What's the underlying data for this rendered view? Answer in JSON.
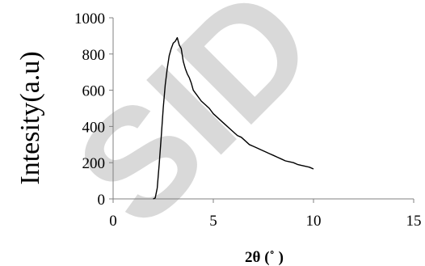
{
  "watermark": {
    "text": "SID",
    "color": "#d9d9d9"
  },
  "chart_data": {
    "type": "line",
    "xlabel": "2θ (˚ )",
    "ylabel": "Intesity(a.u)",
    "xlim": [
      0,
      15
    ],
    "ylim": [
      0,
      1000
    ],
    "xticks": [
      0,
      5,
      10,
      15
    ],
    "yticks": [
      0,
      200,
      400,
      600,
      800,
      1000
    ],
    "grid": false,
    "legend": "none",
    "line_color": "#000000",
    "series": [
      {
        "x": [
          2.0,
          2.1,
          2.2,
          2.3,
          2.4,
          2.5,
          2.6,
          2.7,
          2.8,
          2.9,
          3.0,
          3.1,
          3.2,
          3.3,
          3.4,
          3.5,
          3.6,
          3.7,
          3.8,
          3.9,
          4.0,
          4.2,
          4.4,
          4.6,
          4.8,
          5.0,
          5.2,
          5.4,
          5.6,
          5.8,
          6.0,
          6.2,
          6.4,
          6.6,
          6.8,
          7.0,
          7.2,
          7.4,
          7.6,
          7.8,
          8.0,
          8.2,
          8.4,
          8.6,
          8.8,
          9.0,
          9.2,
          9.4,
          9.6,
          9.8,
          10.0
        ],
        "values": [
          0,
          5,
          60,
          190,
          340,
          500,
          630,
          720,
          790,
          830,
          860,
          870,
          890,
          850,
          830,
          760,
          720,
          690,
          670,
          640,
          600,
          570,
          540,
          520,
          500,
          470,
          450,
          430,
          410,
          390,
          370,
          350,
          340,
          320,
          300,
          290,
          280,
          270,
          260,
          250,
          240,
          230,
          220,
          210,
          205,
          200,
          190,
          185,
          180,
          175,
          165
        ]
      }
    ]
  }
}
